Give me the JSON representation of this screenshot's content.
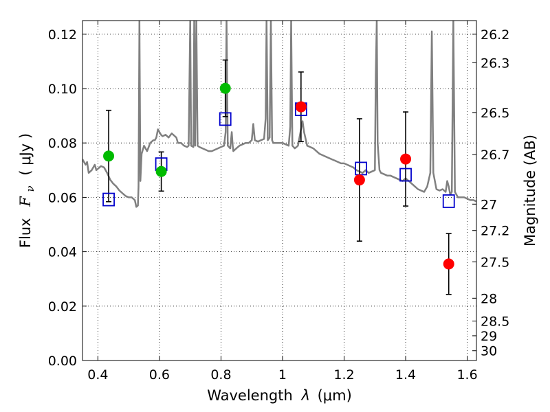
{
  "chart_data": {
    "type": "scatter",
    "xlabel_text": "Wavelength",
    "xlabel_symbol": "λ",
    "xlabel_unit": "(μm)",
    "ylabel_text": "Flux",
    "ylabel_symbol": "F",
    "ylabel_sub": "ν",
    "ylabel_unit": "( μJy )",
    "y2label": "Magnitude (AB)",
    "xlim": [
      0.35,
      1.63
    ],
    "ylim": [
      0.0,
      0.125
    ],
    "xticks": [
      0.4,
      0.6,
      0.8,
      1.0,
      1.2,
      1.4,
      1.6
    ],
    "xtick_labels": [
      "0.4",
      "0.6",
      "0.8",
      "1",
      "1.2",
      "1.4",
      "1.6"
    ],
    "yticks": [
      0.0,
      0.02,
      0.04,
      0.06,
      0.08,
      0.1,
      0.12
    ],
    "ytick_labels": [
      "0.00",
      "0.02",
      "0.04",
      "0.06",
      "0.08",
      "0.10",
      "0.12"
    ],
    "mag_ticks": [
      {
        "label": "26.2",
        "value": 0.12
      },
      {
        "label": "26.3",
        "value": 0.1095
      },
      {
        "label": "26.5",
        "value": 0.0912
      },
      {
        "label": "26.7",
        "value": 0.0757
      },
      {
        "label": "27",
        "value": 0.0575
      },
      {
        "label": "27.2",
        "value": 0.0478
      },
      {
        "label": "27.5",
        "value": 0.0363
      },
      {
        "label": "28",
        "value": 0.0229
      },
      {
        "label": "28.5",
        "value": 0.0145
      },
      {
        "label": "29",
        "value": 0.0091
      },
      {
        "label": "29",
        "value": 0.0091
      },
      {
        "label": "30",
        "value": 0.0036
      }
    ],
    "grid": true,
    "colors": {
      "green": "#00bb00",
      "red": "#ff0000",
      "blue": "#0000cc",
      "model": "#808080",
      "errorbar": "#000000"
    },
    "green_points": [
      {
        "x": 0.435,
        "y": 0.0752,
        "err": 0.0168
      },
      {
        "x": 0.606,
        "y": 0.0695,
        "err": 0.0072
      },
      {
        "x": 0.814,
        "y": 0.1001,
        "err": 0.0104
      }
    ],
    "red_points": [
      {
        "x": 1.06,
        "y": 0.0933,
        "err": 0.0128
      },
      {
        "x": 1.25,
        "y": 0.0664,
        "err": 0.0225
      },
      {
        "x": 1.4,
        "y": 0.0741,
        "err": 0.0173
      },
      {
        "x": 1.54,
        "y": 0.0355,
        "err": 0.0112
      }
    ],
    "blue_squares": [
      {
        "x": 0.435,
        "y": 0.0592
      },
      {
        "x": 0.606,
        "y": 0.0722
      },
      {
        "x": 0.814,
        "y": 0.0888
      },
      {
        "x": 1.06,
        "y": 0.0924
      },
      {
        "x": 1.255,
        "y": 0.0706
      },
      {
        "x": 1.4,
        "y": 0.0683
      },
      {
        "x": 1.54,
        "y": 0.0586
      }
    ],
    "model_spectrum": [
      [
        0.35,
        0.074
      ],
      [
        0.36,
        0.072
      ],
      [
        0.365,
        0.073
      ],
      [
        0.37,
        0.069
      ],
      [
        0.38,
        0.07
      ],
      [
        0.39,
        0.072
      ],
      [
        0.395,
        0.07
      ],
      [
        0.4,
        0.0705
      ],
      [
        0.41,
        0.0715
      ],
      [
        0.42,
        0.071
      ],
      [
        0.43,
        0.069
      ],
      [
        0.44,
        0.0665
      ],
      [
        0.45,
        0.065
      ],
      [
        0.46,
        0.064
      ],
      [
        0.47,
        0.0625
      ],
      [
        0.48,
        0.0615
      ],
      [
        0.49,
        0.0605
      ],
      [
        0.5,
        0.06
      ],
      [
        0.51,
        0.06
      ],
      [
        0.52,
        0.059
      ],
      [
        0.525,
        0.0565
      ],
      [
        0.53,
        0.057
      ],
      [
        0.532,
        0.064
      ],
      [
        0.535,
        0.125
      ],
      [
        0.538,
        0.066
      ],
      [
        0.542,
        0.076
      ],
      [
        0.55,
        0.079
      ],
      [
        0.56,
        0.077
      ],
      [
        0.57,
        0.08
      ],
      [
        0.58,
        0.081
      ],
      [
        0.585,
        0.081
      ],
      [
        0.59,
        0.082
      ],
      [
        0.595,
        0.085
      ],
      [
        0.6,
        0.084
      ],
      [
        0.605,
        0.083
      ],
      [
        0.61,
        0.0825
      ],
      [
        0.62,
        0.083
      ],
      [
        0.63,
        0.082
      ],
      [
        0.64,
        0.0835
      ],
      [
        0.645,
        0.083
      ],
      [
        0.65,
        0.0825
      ],
      [
        0.655,
        0.082
      ],
      [
        0.66,
        0.08
      ],
      [
        0.67,
        0.08
      ],
      [
        0.68,
        0.079
      ],
      [
        0.69,
        0.0785
      ],
      [
        0.695,
        0.079
      ],
      [
        0.7,
        0.125
      ],
      [
        0.703,
        0.079
      ],
      [
        0.71,
        0.0785
      ],
      [
        0.713,
        0.125
      ],
      [
        0.716,
        0.079
      ],
      [
        0.72,
        0.125
      ],
      [
        0.724,
        0.079
      ],
      [
        0.73,
        0.0785
      ],
      [
        0.74,
        0.078
      ],
      [
        0.75,
        0.0775
      ],
      [
        0.76,
        0.077
      ],
      [
        0.77,
        0.077
      ],
      [
        0.78,
        0.0775
      ],
      [
        0.79,
        0.078
      ],
      [
        0.8,
        0.0785
      ],
      [
        0.81,
        0.079
      ],
      [
        0.815,
        0.084
      ],
      [
        0.818,
        0.125
      ],
      [
        0.822,
        0.079
      ],
      [
        0.83,
        0.078
      ],
      [
        0.835,
        0.084
      ],
      [
        0.838,
        0.079
      ],
      [
        0.84,
        0.077
      ],
      [
        0.85,
        0.078
      ],
      [
        0.86,
        0.079
      ],
      [
        0.87,
        0.0795
      ],
      [
        0.88,
        0.08
      ],
      [
        0.89,
        0.08
      ],
      [
        0.9,
        0.081
      ],
      [
        0.905,
        0.087
      ],
      [
        0.91,
        0.081
      ],
      [
        0.92,
        0.0805
      ],
      [
        0.93,
        0.081
      ],
      [
        0.94,
        0.0815
      ],
      [
        0.945,
        0.089
      ],
      [
        0.948,
        0.125
      ],
      [
        0.952,
        0.081
      ],
      [
        0.958,
        0.082
      ],
      [
        0.962,
        0.125
      ],
      [
        0.966,
        0.081
      ],
      [
        0.97,
        0.08
      ],
      [
        0.98,
        0.08
      ],
      [
        0.99,
        0.08
      ],
      [
        1.0,
        0.08
      ],
      [
        1.01,
        0.0795
      ],
      [
        1.02,
        0.079
      ],
      [
        1.025,
        0.086
      ],
      [
        1.028,
        0.125
      ],
      [
        1.032,
        0.079
      ],
      [
        1.04,
        0.078
      ],
      [
        1.05,
        0.079
      ],
      [
        1.06,
        0.085
      ],
      [
        1.065,
        0.088
      ],
      [
        1.07,
        0.084
      ],
      [
        1.08,
        0.079
      ],
      [
        1.09,
        0.0785
      ],
      [
        1.1,
        0.078
      ],
      [
        1.11,
        0.077
      ],
      [
        1.12,
        0.076
      ],
      [
        1.13,
        0.0755
      ],
      [
        1.14,
        0.075
      ],
      [
        1.15,
        0.0745
      ],
      [
        1.16,
        0.074
      ],
      [
        1.17,
        0.0735
      ],
      [
        1.18,
        0.073
      ],
      [
        1.19,
        0.0725
      ],
      [
        1.2,
        0.0725
      ],
      [
        1.21,
        0.072
      ],
      [
        1.22,
        0.0715
      ],
      [
        1.23,
        0.071
      ],
      [
        1.24,
        0.07
      ],
      [
        1.25,
        0.0695
      ],
      [
        1.26,
        0.069
      ],
      [
        1.27,
        0.07
      ],
      [
        1.28,
        0.069
      ],
      [
        1.29,
        0.0695
      ],
      [
        1.3,
        0.07
      ],
      [
        1.303,
        0.105
      ],
      [
        1.306,
        0.125
      ],
      [
        1.309,
        0.08
      ],
      [
        1.315,
        0.07
      ],
      [
        1.32,
        0.069
      ],
      [
        1.33,
        0.0685
      ],
      [
        1.34,
        0.068
      ],
      [
        1.35,
        0.068
      ],
      [
        1.36,
        0.0675
      ],
      [
        1.37,
        0.067
      ],
      [
        1.38,
        0.0665
      ],
      [
        1.39,
        0.066
      ],
      [
        1.4,
        0.067
      ],
      [
        1.41,
        0.066
      ],
      [
        1.42,
        0.065
      ],
      [
        1.43,
        0.064
      ],
      [
        1.44,
        0.063
      ],
      [
        1.45,
        0.0625
      ],
      [
        1.46,
        0.062
      ],
      [
        1.47,
        0.064
      ],
      [
        1.48,
        0.069
      ],
      [
        1.485,
        0.121
      ],
      [
        1.49,
        0.069
      ],
      [
        1.5,
        0.063
      ],
      [
        1.51,
        0.0625
      ],
      [
        1.52,
        0.063
      ],
      [
        1.53,
        0.062
      ],
      [
        1.535,
        0.066
      ],
      [
        1.54,
        0.064
      ],
      [
        1.545,
        0.061
      ],
      [
        1.55,
        0.062
      ],
      [
        1.555,
        0.125
      ],
      [
        1.56,
        0.062
      ],
      [
        1.57,
        0.06
      ],
      [
        1.58,
        0.06
      ],
      [
        1.59,
        0.06
      ],
      [
        1.6,
        0.0595
      ],
      [
        1.61,
        0.059
      ],
      [
        1.62,
        0.059
      ],
      [
        1.63,
        0.0585
      ]
    ]
  }
}
